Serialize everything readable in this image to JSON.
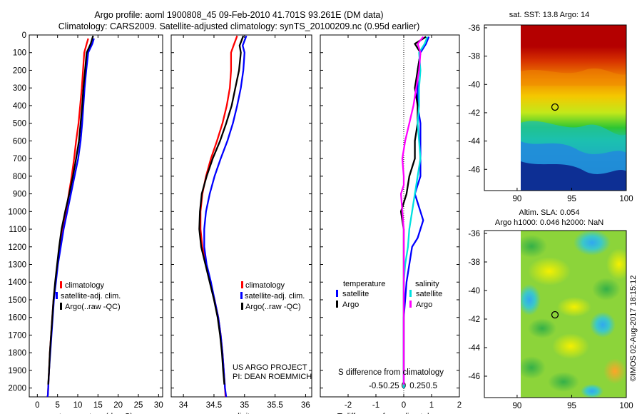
{
  "title_line1": "Argo profile: aoml 1900808_45 09-Feb-2010 41.701S 93.261E (DM data)",
  "title_line2": "Climatology: CARS2009. Satellite-adjusted climatology: synTS_20100209.nc (0.95d earlier)",
  "credits": [
    "US ARGO PROJECT",
    "PI: DEAN ROEMMICH"
  ],
  "imos_stamp": "©IMOS 02-Aug-2017 18:15:12",
  "colors": {
    "climatology": "#ff0000",
    "satellite": "#0000ff",
    "argo": "#000000",
    "cyan": "#00e0e0",
    "magenta": "#ff00ff"
  },
  "chart_data": [
    {
      "type": "line",
      "id": "temperature",
      "xlabel": "temperature (deg C)",
      "xlim": [
        -2,
        31
      ],
      "ylim": [
        0,
        2050
      ],
      "y_reversed": true,
      "xticks": [
        0,
        5,
        10,
        15,
        20,
        25,
        30
      ],
      "yticks": [
        0,
        100,
        200,
        300,
        400,
        500,
        600,
        700,
        800,
        900,
        1000,
        1100,
        1200,
        1300,
        1400,
        1500,
        1600,
        1700,
        1800,
        1900,
        2000
      ],
      "legend": [
        "climatology",
        "satellite-adj. clim.",
        "Argo(..raw -QC)"
      ],
      "series": [
        {
          "name": "climatology",
          "color": "#ff0000",
          "x": [
            12.6,
            12.2,
            11.6,
            11.3,
            11.0,
            10.6,
            10.2,
            9.6,
            9.1,
            8.5,
            7.8,
            7.1,
            6.3,
            5.6,
            5.0,
            4.5,
            4.0,
            3.7,
            3.4,
            3.1,
            2.9,
            2.7,
            2.6,
            2.5
          ],
          "y": [
            20,
            50,
            100,
            200,
            300,
            400,
            500,
            600,
            700,
            800,
            900,
            1000,
            1100,
            1200,
            1300,
            1400,
            1500,
            1600,
            1700,
            1800,
            1900,
            2000,
            2040,
            2050
          ]
        },
        {
          "name": "satellite-adj. clim.",
          "color": "#0000ff",
          "x": [
            14.0,
            13.6,
            12.6,
            12.1,
            11.7,
            11.4,
            11.1,
            10.7,
            10.1,
            9.2,
            8.3,
            7.4,
            6.5,
            5.8,
            5.1,
            4.6,
            4.1,
            3.8,
            3.5,
            3.2,
            2.9,
            2.7,
            2.6,
            2.5
          ],
          "y": [
            20,
            50,
            100,
            200,
            300,
            400,
            500,
            600,
            700,
            800,
            900,
            1000,
            1100,
            1200,
            1300,
            1400,
            1500,
            1600,
            1700,
            1800,
            1900,
            2000,
            2040,
            2050
          ]
        },
        {
          "name": "Argo(..raw -QC)",
          "color": "#000000",
          "x": [
            13.8,
            13.2,
            12.2,
            11.8,
            11.4,
            11.1,
            10.7,
            10.3,
            9.6,
            8.8,
            7.9,
            6.9,
            6.0,
            5.4,
            4.9,
            4.4,
            4.0,
            3.7,
            3.4,
            3.1,
            2.9,
            2.7
          ],
          "y": [
            5,
            50,
            100,
            200,
            300,
            400,
            500,
            600,
            700,
            800,
            900,
            1000,
            1100,
            1200,
            1300,
            1400,
            1500,
            1600,
            1700,
            1800,
            1900,
            1980
          ]
        }
      ]
    },
    {
      "type": "line",
      "id": "salinity",
      "xlabel": "salinity",
      "xlim": [
        33.8,
        36.1
      ],
      "ylim": [
        0,
        2050
      ],
      "y_reversed": true,
      "xticks": [
        34,
        34.5,
        35,
        35.5,
        36
      ],
      "legend": [
        "climatology",
        "satellite-adj. clim.",
        "Argo(..raw -QC)"
      ],
      "series": [
        {
          "name": "climatology",
          "color": "#ff0000",
          "x": [
            34.88,
            34.82,
            34.78,
            34.78,
            34.76,
            34.71,
            34.64,
            34.55,
            34.45,
            34.37,
            34.31,
            34.28,
            34.28,
            34.31,
            34.37,
            34.44,
            34.51,
            34.57,
            34.61,
            34.64,
            34.66,
            34.68,
            34.69
          ],
          "y": [
            5,
            60,
            100,
            200,
            300,
            400,
            500,
            600,
            700,
            800,
            900,
            1000,
            1100,
            1200,
            1300,
            1400,
            1500,
            1600,
            1700,
            1800,
            1900,
            2000,
            2050
          ]
        },
        {
          "name": "satellite-adj. clim.",
          "color": "#0000ff",
          "x": [
            35.03,
            34.97,
            35.0,
            34.98,
            34.94,
            34.88,
            34.81,
            34.72,
            34.61,
            34.51,
            34.43,
            34.37,
            34.34,
            34.34,
            34.38,
            34.45,
            34.51,
            34.57,
            34.61,
            34.64,
            34.66,
            34.68,
            34.7
          ],
          "y": [
            5,
            60,
            100,
            200,
            300,
            400,
            500,
            600,
            700,
            800,
            900,
            1000,
            1100,
            1200,
            1300,
            1400,
            1500,
            1600,
            1700,
            1800,
            1900,
            2000,
            2050
          ]
        },
        {
          "name": "Argo(..raw -QC)",
          "color": "#000000",
          "x": [
            34.98,
            34.92,
            34.94,
            34.91,
            34.85,
            34.79,
            34.7,
            34.6,
            34.48,
            34.38,
            34.3,
            34.27,
            34.26,
            34.29,
            34.36,
            34.43,
            34.5,
            34.56,
            34.6,
            34.63,
            34.65,
            34.67
          ],
          "y": [
            5,
            60,
            100,
            200,
            300,
            400,
            500,
            600,
            700,
            800,
            900,
            1000,
            1100,
            1200,
            1300,
            1400,
            1500,
            1600,
            1700,
            1800,
            1900,
            1980
          ]
        }
      ]
    },
    {
      "type": "line",
      "id": "differences",
      "xlabel": "T difference from climatology",
      "top_axis_label": "S difference from climatology",
      "xlim": [
        -3,
        2
      ],
      "ylim": [
        0,
        2050
      ],
      "y_reversed": true,
      "xticks": [
        -2,
        -1,
        0,
        1,
        2
      ],
      "s_xticks": [
        -0.5,
        -0.25,
        0,
        0.25,
        0.5
      ],
      "s_xtick_labels": [
        "-0.5",
        "-0.25",
        "0",
        "0.25",
        "0.5"
      ],
      "legend_headers": [
        "temperature",
        "salinity"
      ],
      "legend": [
        "satellite",
        "Argo",
        "satellite",
        "Argo"
      ],
      "series": [
        {
          "name": "satellite",
          "quantity": "temperature",
          "color": "#0000ff",
          "x": [
            0.9,
            0.8,
            0.6,
            0.5,
            0.5,
            0.5,
            0.6,
            0.6,
            0.6,
            0.6,
            0.5,
            0.4,
            0.5,
            0.6,
            0.7,
            0.6,
            0.5,
            0.3,
            0.2,
            0.1,
            0.05,
            0.0,
            0.0,
            0.0,
            0.0,
            0.0
          ],
          "y": [
            10,
            50,
            100,
            200,
            300,
            400,
            500,
            600,
            700,
            800,
            850,
            900,
            950,
            1000,
            1050,
            1100,
            1150,
            1200,
            1300,
            1400,
            1500,
            1600,
            1700,
            1800,
            1900,
            2000
          ]
        },
        {
          "name": "Argo",
          "quantity": "temperature",
          "color": "#000000",
          "x": [
            0.8,
            0.4,
            0.6,
            0.5,
            0.4,
            0.5,
            0.5,
            0.4,
            0.4,
            0.2,
            0.1,
            0.0,
            -0.1,
            -0.05,
            0.0,
            0.0,
            0.0,
            0.0,
            0.0
          ],
          "y": [
            10,
            50,
            100,
            200,
            300,
            400,
            500,
            600,
            700,
            800,
            900,
            950,
            1000,
            1050,
            1100,
            1200,
            1400,
            1600,
            1900
          ]
        },
        {
          "name": "satellite",
          "quantity": "salinity",
          "color": "#00e0e0",
          "x": [
            0.85,
            0.75,
            0.55,
            0.6,
            0.55,
            0.55,
            0.5,
            0.55,
            0.6,
            0.5,
            0.4,
            0.3,
            0.2,
            0.15,
            0.05,
            0.0,
            0.0,
            0.0,
            0.0
          ],
          "y": [
            10,
            50,
            100,
            200,
            300,
            400,
            500,
            600,
            700,
            800,
            900,
            1000,
            1100,
            1200,
            1300,
            1400,
            1600,
            1800,
            2000
          ]
        },
        {
          "name": "Argo",
          "quantity": "salinity",
          "color": "#ff00ff",
          "x": [
            0.7,
            0.5,
            0.6,
            0.55,
            0.45,
            0.35,
            0.2,
            0.05,
            -0.05,
            0.0,
            0.0,
            -0.1,
            -0.05,
            0.0,
            0.0,
            0.0,
            0.0,
            0.0,
            0.0,
            0.0
          ],
          "y": [
            10,
            50,
            100,
            200,
            300,
            400,
            500,
            600,
            700,
            800,
            850,
            900,
            1000,
            1100,
            1200,
            1300,
            1400,
            1600,
            1800,
            1980
          ]
        }
      ]
    },
    {
      "type": "heatmap",
      "id": "sst_map",
      "title": "sat. SST: 13.8 Argo: 14",
      "xlim": [
        87,
        100
      ],
      "ylim": [
        -47.5,
        -35.8
      ],
      "xticks": [
        90,
        95,
        100
      ],
      "yticks": [
        -36,
        -38,
        -40,
        -42,
        -44,
        -46
      ],
      "profile_location": {
        "lon": 93.261,
        "lat": -41.701
      }
    },
    {
      "type": "heatmap",
      "id": "sla_map",
      "title": [
        "Altim. SLA: 0.054",
        "Argo h1000: 0.046 h2000: NaN"
      ],
      "xlim": [
        87,
        100
      ],
      "ylim": [
        -47.5,
        -35.8
      ],
      "xticks": [
        90,
        95,
        100
      ],
      "yticks": [
        -36,
        -38,
        -40,
        -42,
        -44,
        -46
      ],
      "profile_location": {
        "lon": 93.261,
        "lat": -41.701
      }
    }
  ]
}
